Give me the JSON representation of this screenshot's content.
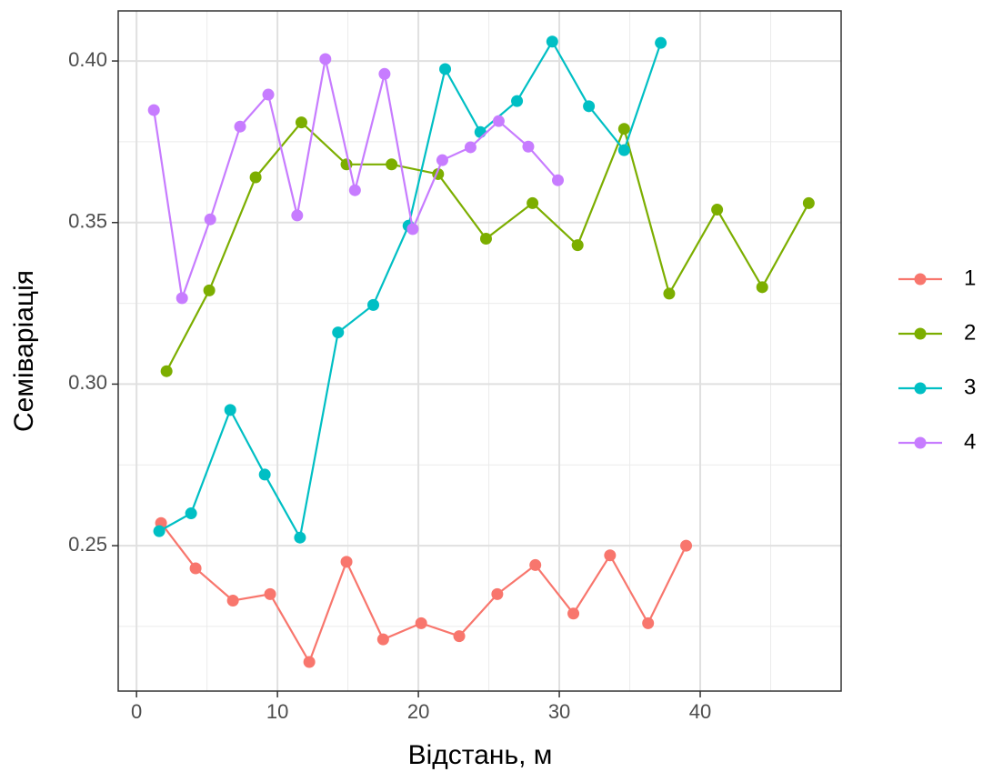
{
  "chart_data": {
    "type": "line",
    "x_label": "Відстань, м",
    "y_label": "Семіваріація",
    "xlim": [
      -1.3,
      50
    ],
    "ylim": [
      0.205,
      0.4155
    ],
    "xticks": [
      0,
      10,
      20,
      30,
      40
    ],
    "yticks": [
      0.25,
      {
        "value": 0.3,
        "label": "0.30"
      },
      0.35,
      {
        "value": 0.4,
        "label": "0.40"
      }
    ],
    "grid": true,
    "minor_grid": true,
    "legend": "right",
    "series": [
      {
        "name": "1",
        "color": "#F8766D",
        "x": [
          1.74,
          4.19,
          6.84,
          9.48,
          12.26,
          14.9,
          17.5,
          20.2,
          22.9,
          25.6,
          28.3,
          31.0,
          33.6,
          36.3,
          39.0
        ],
        "values": [
          0.257,
          0.243,
          0.233,
          0.235,
          0.214,
          0.245,
          0.221,
          0.226,
          0.222,
          0.235,
          0.244,
          0.229,
          0.247,
          0.226,
          0.25
        ]
      },
      {
        "name": "2",
        "color": "#7CAE00",
        "x": [
          2.13,
          5.16,
          8.45,
          11.7,
          14.9,
          18.1,
          21.4,
          24.8,
          28.1,
          31.3,
          34.6,
          37.8,
          41.2,
          44.4,
          47.7
        ],
        "values": [
          0.304,
          0.329,
          0.364,
          0.381,
          0.368,
          0.368,
          0.365,
          0.345,
          0.356,
          0.343,
          0.379,
          0.328,
          0.354,
          0.33,
          0.356
        ]
      },
      {
        "name": "3",
        "color": "#00BFC4",
        "x": [
          1.61,
          3.87,
          6.65,
          9.1,
          11.6,
          14.3,
          16.8,
          19.3,
          21.9,
          24.4,
          27.0,
          29.5,
          32.1,
          34.6,
          37.2
        ],
        "values": [
          0.2545,
          0.26,
          0.292,
          0.272,
          0.2525,
          0.316,
          0.3245,
          0.349,
          0.3975,
          0.378,
          0.3876,
          0.406,
          0.386,
          0.3724,
          0.4056
        ]
      },
      {
        "name": "4",
        "color": "#C77CFF",
        "x": [
          1.23,
          3.23,
          5.23,
          7.35,
          9.35,
          11.4,
          13.4,
          15.5,
          17.6,
          19.6,
          21.7,
          23.7,
          25.7,
          27.8,
          29.9
        ],
        "values": [
          0.3848,
          0.3266,
          0.351,
          0.3797,
          0.3896,
          0.3522,
          0.4006,
          0.36,
          0.396,
          0.348,
          0.3693,
          0.3733,
          0.3814,
          0.3735,
          0.3631
        ]
      }
    ]
  }
}
